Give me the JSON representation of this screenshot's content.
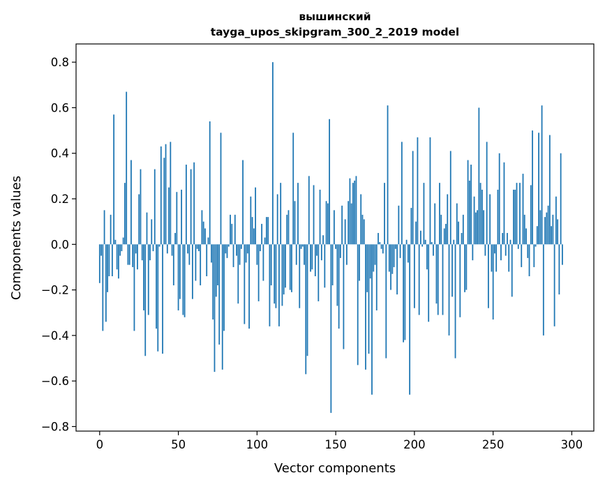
{
  "chart_data": {
    "type": "bar",
    "title": "вышинский",
    "subtitle": "tayga_upos_skipgram_300_2_2019 model",
    "xlabel": "Vector components",
    "ylabel": "Components values",
    "xlim": [
      -15,
      314
    ],
    "ylim": [
      -0.82,
      0.88
    ],
    "x_ticks": [
      0,
      50,
      100,
      150,
      200,
      250,
      300
    ],
    "x_tick_labels": [
      "0",
      "50",
      "100",
      "150",
      "200",
      "250",
      "300"
    ],
    "y_ticks": [
      0.8,
      0.6,
      0.4,
      0.2,
      0.0,
      -0.2,
      -0.4,
      -0.6,
      -0.8
    ],
    "y_tick_labels": [
      "0.8",
      "0.6",
      "0.4",
      "0.2",
      "0.0",
      "−0.2",
      "−0.4",
      "−0.6",
      "−0.8"
    ],
    "grid": false,
    "legend": "none",
    "bar_color": "#1f77b4",
    "categories_range": [
      0,
      299
    ],
    "values": [
      -0.17,
      -0.05,
      -0.38,
      0.15,
      -0.34,
      -0.21,
      -0.14,
      0.13,
      -0.14,
      0.57,
      0.02,
      -0.11,
      -0.15,
      -0.05,
      -0.03,
      0.03,
      0.27,
      0.67,
      -0.09,
      -0.09,
      0.37,
      -0.1,
      -0.38,
      -0.04,
      -0.11,
      0.22,
      0.33,
      -0.07,
      -0.29,
      -0.49,
      0.14,
      -0.31,
      -0.07,
      0.11,
      -0.03,
      0.33,
      -0.37,
      -0.47,
      -0.01,
      0.43,
      -0.48,
      0.38,
      0.44,
      -0.04,
      0.25,
      0.45,
      -0.05,
      -0.18,
      0.05,
      0.23,
      -0.29,
      -0.24,
      0.24,
      -0.31,
      -0.32,
      0.35,
      -0.04,
      -0.09,
      0.33,
      -0.24,
      0.36,
      -0.16,
      -0.02,
      -0.03,
      -0.18,
      0.15,
      0.1,
      0.07,
      -0.14,
      0.03,
      0.54,
      -0.08,
      -0.33,
      -0.56,
      -0.23,
      -0.18,
      -0.44,
      0.49,
      -0.55,
      -0.38,
      -0.04,
      -0.06,
      -0.01,
      0.13,
      0.09,
      -0.1,
      0.13,
      -0.05,
      -0.26,
      -0.09,
      -0.02,
      0.37,
      -0.35,
      -0.08,
      -0.04,
      -0.37,
      0.21,
      0.12,
      0.07,
      0.25,
      -0.09,
      -0.25,
      -0.03,
      0.09,
      -0.16,
      0.03,
      0.12,
      0.12,
      -0.36,
      -0.18,
      0.8,
      -0.26,
      -0.28,
      0.22,
      -0.36,
      0.27,
      -0.27,
      -0.22,
      -0.19,
      0.13,
      0.15,
      -0.2,
      -0.21,
      0.49,
      0.19,
      -0.09,
      0.27,
      -0.28,
      -0.02,
      -0.01,
      -0.09,
      -0.57,
      -0.49,
      0.3,
      -0.12,
      -0.11,
      0.26,
      -0.14,
      -0.05,
      -0.25,
      0.24,
      -0.07,
      0.04,
      -0.19,
      0.19,
      0.18,
      0.55,
      -0.74,
      -0.18,
      0.15,
      -0.02,
      -0.27,
      -0.37,
      -0.06,
      0.17,
      -0.46,
      0.11,
      -0.09,
      0.19,
      0.29,
      0.18,
      0.27,
      0.28,
      0.3,
      -0.53,
      -0.16,
      0.22,
      0.13,
      0.11,
      -0.55,
      -0.21,
      -0.48,
      -0.15,
      -0.66,
      -0.12,
      -0.09,
      -0.29,
      0.05,
      0.01,
      -0.02,
      -0.04,
      0.27,
      -0.5,
      0.61,
      -0.12,
      -0.2,
      -0.13,
      -0.1,
      -0.02,
      -0.22,
      0.17,
      -0.06,
      0.45,
      -0.43,
      -0.42,
      0.02,
      -0.08,
      -0.66,
      0.16,
      0.41,
      -0.28,
      0.1,
      0.47,
      -0.31,
      0.06,
      -0.01,
      0.27,
      0.02,
      -0.11,
      -0.34,
      0.47,
      0.01,
      -0.05,
      0.18,
      -0.26,
      -0.31,
      0.27,
      0.13,
      -0.31,
      0.07,
      0.09,
      0.22,
      -0.4,
      0.41,
      -0.23,
      0.02,
      -0.5,
      0.18,
      0.1,
      -0.32,
      0.05,
      0.13,
      -0.21,
      -0.2,
      0.37,
      0.28,
      0.35,
      -0.07,
      0.21,
      0.14,
      0.15,
      0.6,
      0.27,
      0.24,
      0.15,
      -0.05,
      0.45,
      -0.28,
      0.22,
      -0.12,
      -0.33,
      -0.04,
      -0.12,
      0.24,
      0.4,
      -0.07,
      0.05,
      0.36,
      -0.05,
      0.05,
      -0.12,
      0.02,
      -0.23,
      0.24,
      0.24,
      0.27,
      -0.02,
      0.27,
      -0.1,
      0.31,
      0.13,
      0.07,
      -0.06,
      -0.14,
      0.26,
      0.5,
      -0.1,
      -0.01,
      0.08,
      0.49,
      0.15,
      0.61,
      -0.4,
      0.12,
      0.14,
      0.17,
      0.48,
      0.08,
      0.13,
      -0.36,
      0.21,
      0.11,
      -0.22,
      0.4,
      -0.09
    ]
  }
}
